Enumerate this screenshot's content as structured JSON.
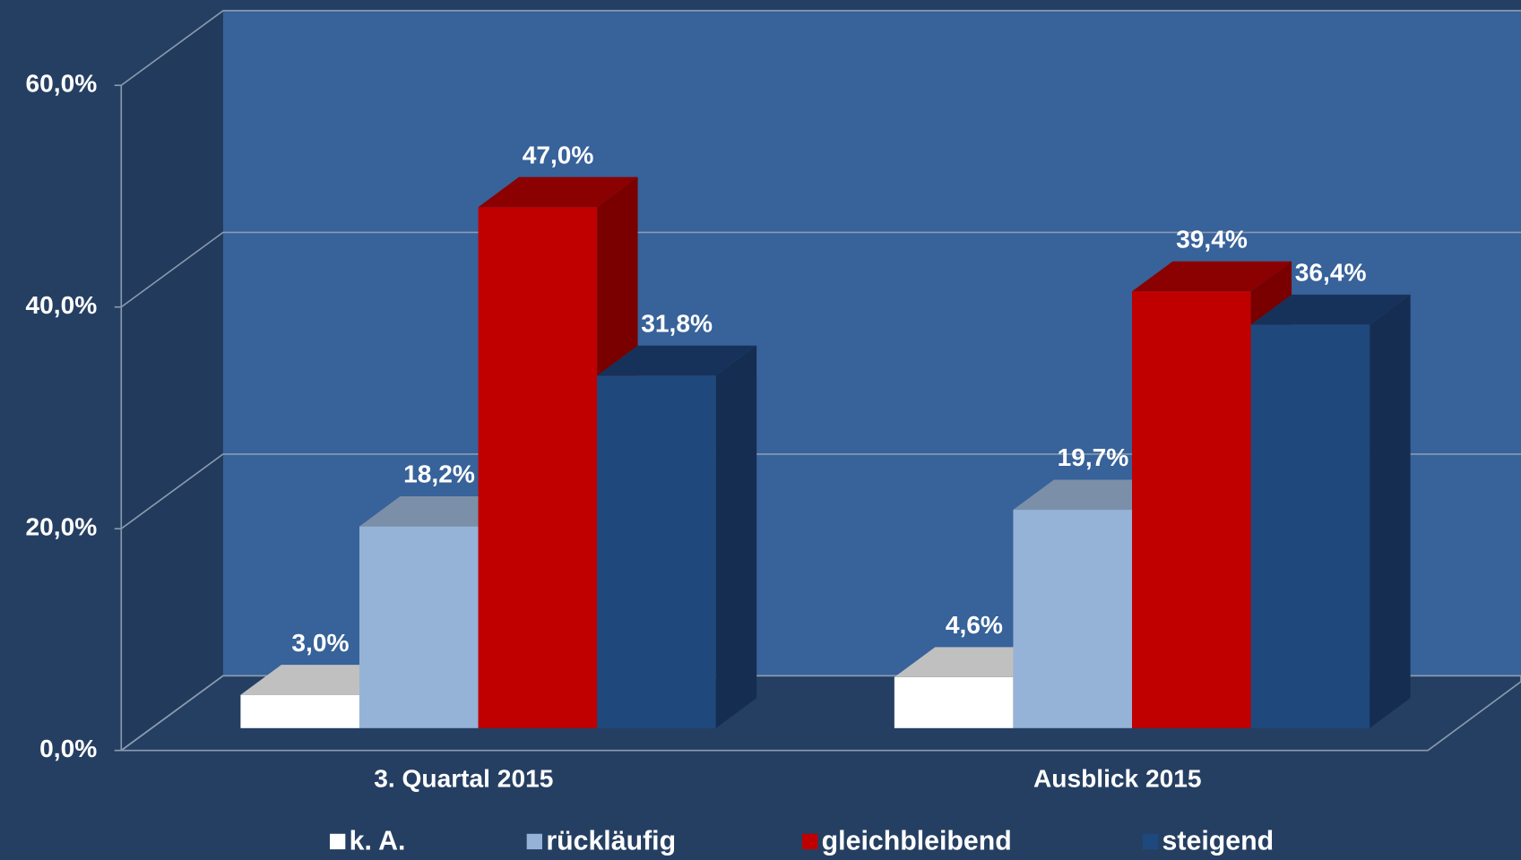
{
  "chart_data": {
    "type": "bar3d",
    "categories": [
      "3. Quartal 2015",
      "Ausblick 2015"
    ],
    "series": [
      {
        "name": "k. A.",
        "color": "#ffffff",
        "values": [
          3.0,
          4.6
        ],
        "value_labels": [
          "3,0%",
          "4,6%"
        ]
      },
      {
        "name": "rückläufig",
        "color": "#95b3d7",
        "values": [
          18.2,
          19.7
        ],
        "value_labels": [
          "18,2%",
          "19,7%"
        ]
      },
      {
        "name": "gleichbleibend",
        "color": "#c00000",
        "values": [
          47.0,
          39.4
        ],
        "value_labels": [
          "47,0%",
          "39,4%"
        ]
      },
      {
        "name": "steigend",
        "color": "#1f497d",
        "values": [
          31.8,
          36.4
        ],
        "value_labels": [
          "31,8%",
          "36,4%"
        ]
      }
    ],
    "ylim": [
      0,
      60
    ],
    "yticks": [
      {
        "value": 0,
        "label": "0,0%"
      },
      {
        "value": 20,
        "label": "20,0%"
      },
      {
        "value": 40,
        "label": "40,0%"
      },
      {
        "value": 60,
        "label": "60,0%"
      }
    ],
    "grid": true,
    "legend": "bottom"
  }
}
